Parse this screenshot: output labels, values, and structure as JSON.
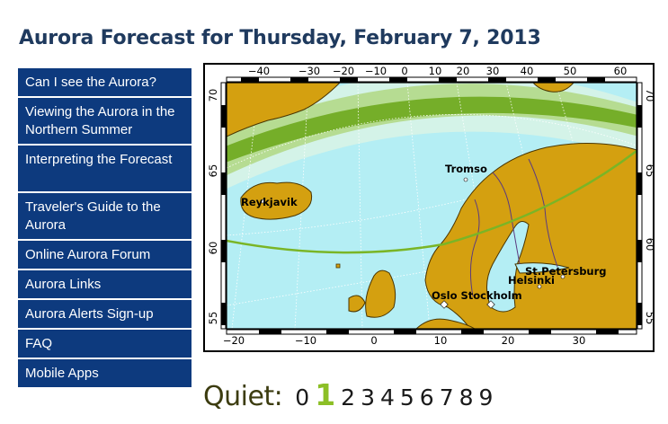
{
  "page": {
    "title": "Aurora Forecast for Thursday, February 7, 2013"
  },
  "nav": {
    "items": [
      {
        "label": "Can I see the Aurora?"
      },
      {
        "label": "Viewing the Aurora in the Northern Summer"
      },
      {
        "label": "Interpreting the Forecast"
      },
      {
        "label": "Traveler's Guide to the Aurora"
      },
      {
        "label": "Online Aurora Forum"
      },
      {
        "label": "Aurora Links"
      },
      {
        "label": "Aurora Alerts Sign-up"
      },
      {
        "label": "FAQ"
      },
      {
        "label": "Mobile Apps"
      }
    ]
  },
  "map": {
    "top_ticks": [
      "−40",
      "−30",
      "−20",
      "−10",
      "0",
      "10",
      "20",
      "30",
      "40",
      "50",
      "60"
    ],
    "bottom_ticks": [
      "−20",
      "−10",
      "0",
      "10",
      "20",
      "30"
    ],
    "left_ticks": [
      "70",
      "65",
      "60",
      "55"
    ],
    "right_ticks": [
      "70",
      "65",
      "60",
      "55"
    ],
    "cities": {
      "tromso": "Tromso",
      "reykjavik": "Reykjavik",
      "st_petersburg": "St.Petersburg",
      "helsinki": "Helsinki",
      "oslo_stockholm": "Oslo Stockholm"
    },
    "colors": {
      "ocean": "#b4eef4",
      "land": "#d4a010",
      "aurora": "#7ab526",
      "view_line": "#7ab526"
    }
  },
  "scale": {
    "label": "Quiet:",
    "levels": [
      "0",
      "1",
      "2",
      "3",
      "4",
      "5",
      "6",
      "7",
      "8",
      "9"
    ],
    "current_level": "1"
  }
}
